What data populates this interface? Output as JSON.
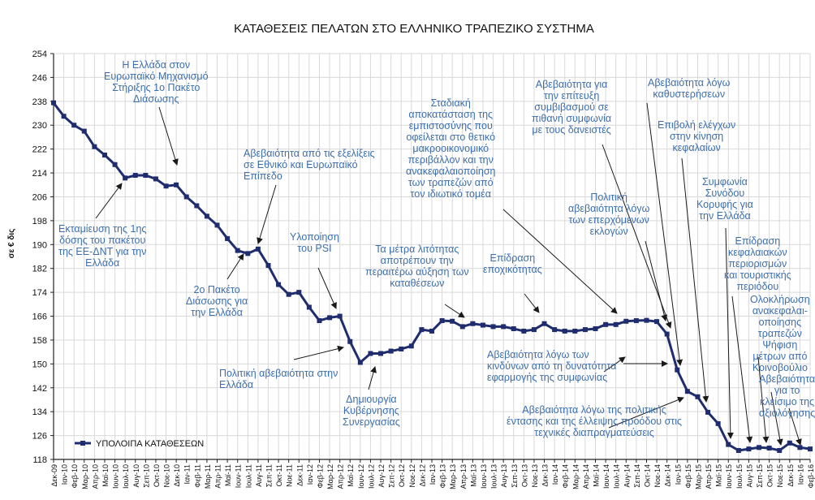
{
  "chart_data": {
    "type": "line",
    "title": "ΚΑΤΑΘΕΣΕΙΣ ΠΕΛΑΤΩΝ ΣΤΟ ΕΛΛΗΝΙΚΟ ΤΡΑΠΕΖΙΚΟ ΣΥΣΤΗΜΑ",
    "ylabel": "σε € δις",
    "xlabel": "",
    "ylim": [
      118,
      254
    ],
    "yticks": [
      118,
      126,
      134,
      142,
      150,
      158,
      166,
      174,
      182,
      190,
      198,
      206,
      214,
      222,
      230,
      238,
      246,
      254
    ],
    "grid": true,
    "legend": "ΥΠΟΛΟΙΠΑ ΚΑΤΑΘΕΣΕΩΝ",
    "color": "#1f2d6e",
    "categories": [
      "Δεκ-09",
      "Ιαν-10",
      "Φεβ-10",
      "Μαρ-10",
      "Απρ-10",
      "Μαϊ-10",
      "Ιουν-10",
      "Ιουλ-10",
      "Αυγ-10",
      "Σεπ-10",
      "Οκτ-10",
      "Νοε-10",
      "Δεκ-10",
      "Ιαν-11",
      "Φεβ-11",
      "Μαρ-11",
      "Απρ-11",
      "Μαϊ-11",
      "Ιουν-11",
      "Ιουλ-11",
      "Αυγ-11",
      "Σεπ-11",
      "Οκτ-11",
      "Νοε-11",
      "Δεκ-11",
      "Ιαν-12",
      "Φεβ-12",
      "Μαρ-12",
      "Απρ-12",
      "Μαϊ-12",
      "Ιουν-12",
      "Ιουλ-12",
      "Αυγ-12",
      "Σεπ-12",
      "Οκτ-12",
      "Νοε-12",
      "Δεκ-12",
      "Ιαν-13",
      "Φεβ-13",
      "Μαρ-13",
      "Απρ-13",
      "Μαϊ-13",
      "Ιουν-13",
      "Ιουλ-13",
      "Αυγ-13",
      "Σεπ-13",
      "Οκτ-13",
      "Νοε-13",
      "Δεκ-13",
      "Ιαν-14",
      "Φεβ-14",
      "Μαρ-14",
      "Απρ-14",
      "Μαϊ-14",
      "Ιουν-14",
      "Ιουλ-14",
      "Αυγ-14",
      "Σεπ-14",
      "Οκτ-14",
      "Νοε-14",
      "Δεκ-14",
      "Ιαν-15",
      "Φεβ-15",
      "Μαρ-15",
      "Απρ-15",
      "Μαϊ-15",
      "Ιουν-15",
      "Ιουλ-15",
      "Αυγ-15",
      "Σεπ-15",
      "Οκτ-15",
      "Νοε-15",
      "Δεκ-15",
      "Ιαν-16",
      "Φεβ-16"
    ],
    "values": [
      237.5,
      233.0,
      230.0,
      228.0,
      222.8,
      220.0,
      216.8,
      212.3,
      213.2,
      213.2,
      212.0,
      209.6,
      210.0,
      206.0,
      203.0,
      199.5,
      196.5,
      192.0,
      188.0,
      187.0,
      188.5,
      183.0,
      176.6,
      173.3,
      174.0,
      169.0,
      164.5,
      165.5,
      166.0,
      157.5,
      150.5,
      153.5,
      153.5,
      154.3,
      155.0,
      156.0,
      161.5,
      161.0,
      164.5,
      164.3,
      162.5,
      163.5,
      163.0,
      162.5,
      162.5,
      161.8,
      161.0,
      161.5,
      163.5,
      161.5,
      161.0,
      161.0,
      161.5,
      161.8,
      163.2,
      163.2,
      164.3,
      164.5,
      164.6,
      164.2,
      160.0,
      148.0,
      140.8,
      139.0,
      133.8,
      130.0,
      123.0,
      121.0,
      121.5,
      122.0,
      121.8,
      121.0,
      123.5,
      122.0,
      121.5
    ]
  },
  "annotations": [
    {
      "id": "efsf",
      "lines": [
        "Η Ελλάδα στον",
        "Ευρωπαϊκό Μηχανισμό",
        "Στήριξης 1ο Πακέτο",
        "Διάσωσης"
      ]
    },
    {
      "id": "first-tranche",
      "lines": [
        "Εκταμίευση  της 1ης",
        "δόσης του πακέτου",
        "της ΕΕ-ΔΝΤ για την",
        "Ελλάδα"
      ]
    },
    {
      "id": "uncertainty-eu",
      "lines": [
        "Αβεβαιότητα  από τις εξελίξεις",
        "σε Εθνικό  και Ευρωπαϊκό",
        "Επίπεδο"
      ]
    },
    {
      "id": "second-bailout",
      "lines": [
        "2ο Πακέτο",
        "Διάσωσης για",
        "την Ελλάδα"
      ]
    },
    {
      "id": "psi",
      "lines": [
        "Υλοποίηση",
        "του PSI"
      ]
    },
    {
      "id": "political-uncertainty",
      "lines": [
        "Πολιτική  αβεβαιότητα  στην",
        "Ελλάδα"
      ]
    },
    {
      "id": "coalition",
      "lines": [
        "Δημιουργία",
        "Κυβέρνησης",
        "Συνεργασίας"
      ]
    },
    {
      "id": "austerity",
      "lines": [
        "Τα μέτρα λιτότητας",
        "αποτρέπουν την",
        "περαιτέρω αύξηση των",
        "καταθέσεων"
      ]
    },
    {
      "id": "confidence",
      "lines": [
        "Σταδιακή",
        "αποκατάσταση  της",
        "εμπιστοσύνης  που",
        "οφείλεται  στο θετικό",
        "μακροοικονομικό",
        "περιβάλλον  και την",
        "ανακεφαλαιοποίηση",
        "των τραπεζών  από",
        "τον ιδιωτικό  τομέα"
      ]
    },
    {
      "id": "seasonality",
      "lines": [
        "Επίδραση",
        "εποχικότητας"
      ]
    },
    {
      "id": "agreement-uncertainty",
      "lines": [
        "Αβεβαιότητα  για",
        "την επίτευξη",
        "συμβιβασμού  σε",
        "πιθανή  συμφωνία",
        "με τους δανειστές"
      ]
    },
    {
      "id": "elections",
      "lines": [
        "Πολιτική",
        "αβεβαιότητα  λόγω",
        "των επερχόμενων",
        "εκλογών"
      ]
    },
    {
      "id": "implementation-risk",
      "lines": [
        "Αβεβαιότητα  λόγω των",
        "κινδύνων  από τη δυνατότητα",
        "εφαρμογής  της συμφωνίας"
      ]
    },
    {
      "id": "political-tension",
      "lines": [
        "Αβεβαιότητα  λόγω της πολιτικής",
        "έντασης  και της έλλειψης  προόδου  στις",
        "τεχνικές  διαπραγματεύσεις"
      ]
    },
    {
      "id": "delays",
      "lines": [
        "Αβεβαιότητα  λόγω",
        "καθυστερήσεων"
      ]
    },
    {
      "id": "capital-controls",
      "lines": [
        "Επιβολή  ελέγχων",
        "στην  κίνηση",
        "κεφαλαίων"
      ]
    },
    {
      "id": "summit",
      "lines": [
        "Συμφωνία",
        "Συνόδου",
        "Κορυφής  για",
        "την Ελλάδα"
      ]
    },
    {
      "id": "tourism",
      "lines": [
        "Επίδραση",
        "κεφαλαιακών",
        "περιορισμών",
        "και τουριστικής",
        "περιόδου"
      ]
    },
    {
      "id": "recapitalisation",
      "lines": [
        "Ολοκλήρωση",
        "ανακεφαλαι-",
        "οποίησης",
        "τραπεζών",
        "Ψήφιση",
        "μέτρων  από",
        "Κοινοβούλιο"
      ]
    },
    {
      "id": "pension",
      "lines": [
        "Αβεβαιότητα",
        "για το",
        "κλείσιμο  της",
        "αξιολόγησης"
      ]
    }
  ]
}
